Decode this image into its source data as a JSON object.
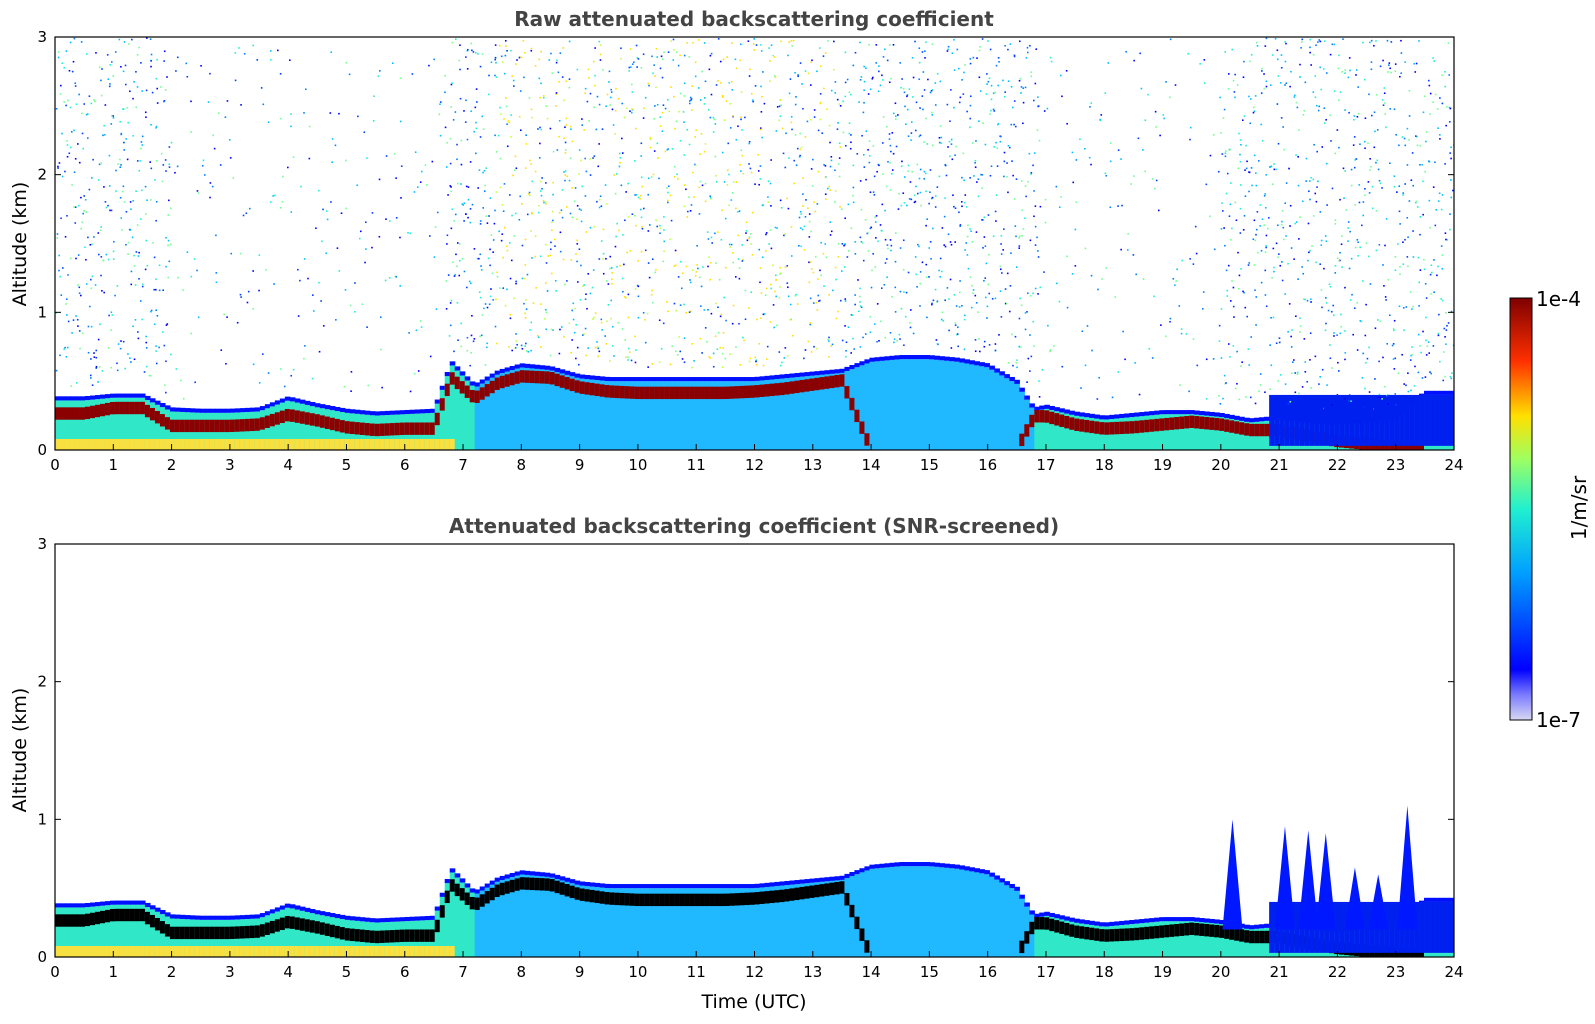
{
  "colors": {
    "text": "#444444",
    "colormap_low": "#d8d8f2",
    "colormap_high": "#7f0000",
    "screened_core": "#000000"
  },
  "chart_data": [
    {
      "type": "heatmap",
      "title": "Raw attenuated backscattering coefficient",
      "xlabel": "",
      "ylabel": "Altitude (km)",
      "xlim": [
        0,
        24
      ],
      "ylim": [
        0,
        3
      ],
      "xticks": [
        "0",
        "1",
        "2",
        "3",
        "4",
        "5",
        "6",
        "7",
        "8",
        "9",
        "10",
        "11",
        "12",
        "13",
        "14",
        "15",
        "16",
        "17",
        "18",
        "19",
        "20",
        "21",
        "22",
        "23",
        "24"
      ],
      "yticks": [
        "0",
        "1",
        "2",
        "3"
      ],
      "screened": false,
      "boundary_layer": {
        "time_utc": [
          0,
          0.5,
          1,
          1.5,
          2,
          2.5,
          3,
          3.5,
          4,
          4.5,
          5,
          5.5,
          6,
          6.5,
          6.8,
          7.2,
          7.6,
          8,
          8.5,
          9,
          9.5,
          10,
          10.5,
          11,
          11.5,
          12,
          12.5,
          13,
          13.5,
          14,
          14.5,
          15,
          15.5,
          16,
          16.5,
          16.8,
          17,
          17.5,
          18,
          18.5,
          19,
          19.5,
          20,
          20.5,
          21,
          21.5,
          22,
          22.5,
          23,
          23.5,
          24
        ],
        "top_km": [
          0.36,
          0.36,
          0.38,
          0.38,
          0.28,
          0.27,
          0.27,
          0.28,
          0.36,
          0.31,
          0.27,
          0.25,
          0.26,
          0.27,
          0.62,
          0.45,
          0.55,
          0.6,
          0.58,
          0.52,
          0.5,
          0.5,
          0.5,
          0.5,
          0.5,
          0.5,
          0.52,
          0.54,
          0.56,
          0.64,
          0.66,
          0.66,
          0.64,
          0.6,
          0.48,
          0.28,
          0.3,
          0.25,
          0.22,
          0.24,
          0.26,
          0.26,
          0.24,
          0.2,
          0.22,
          0.2,
          0.18,
          0.2,
          0.22,
          0.4,
          0.4
        ],
        "peak_km": [
          0.26,
          0.26,
          0.3,
          0.3,
          0.17,
          0.17,
          0.17,
          0.18,
          0.25,
          0.21,
          0.16,
          0.14,
          0.15,
          0.15,
          0.52,
          0.37,
          0.48,
          0.53,
          0.52,
          0.45,
          0.42,
          0.41,
          0.41,
          0.41,
          0.41,
          0.42,
          0.44,
          0.47,
          0.5,
          0,
          0,
          0,
          0,
          0,
          0,
          0.24,
          0.24,
          0.18,
          0.15,
          0.16,
          0.18,
          0.2,
          0.18,
          0.14,
          0.14,
          0.1,
          0.06,
          0.04,
          0.02,
          0,
          0
        ]
      },
      "colorbar": {
        "label": "1/m/sr",
        "max_label": "1e-4",
        "min_label": "1e-7",
        "range": [
          1e-07,
          0.0001
        ],
        "scale": "log",
        "colormap": "jet"
      }
    },
    {
      "type": "heatmap",
      "title": "Attenuated backscattering coefficient (SNR-screened)",
      "xlabel": "Time (UTC)",
      "ylabel": "Altitude (km)",
      "xlim": [
        0,
        24
      ],
      "ylim": [
        0,
        3
      ],
      "xticks": [
        "0",
        "1",
        "2",
        "3",
        "4",
        "5",
        "6",
        "7",
        "8",
        "9",
        "10",
        "11",
        "12",
        "13",
        "14",
        "15",
        "16",
        "17",
        "18",
        "19",
        "20",
        "21",
        "22",
        "23",
        "24"
      ],
      "yticks": [
        "0",
        "1",
        "2",
        "3"
      ],
      "screened": true,
      "spikes": [
        {
          "time_utc": 20.2,
          "top_km": 1.0
        },
        {
          "time_utc": 21.1,
          "top_km": 0.95
        },
        {
          "time_utc": 21.5,
          "top_km": 0.92
        },
        {
          "time_utc": 21.8,
          "top_km": 0.9
        },
        {
          "time_utc": 22.3,
          "top_km": 0.65
        },
        {
          "time_utc": 22.7,
          "top_km": 0.6
        },
        {
          "time_utc": 23.2,
          "top_km": 1.1
        }
      ]
    }
  ]
}
